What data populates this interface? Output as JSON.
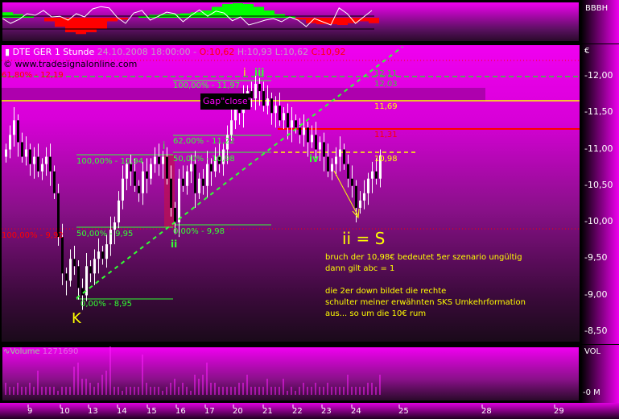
{
  "header": {
    "symbol": "DTE GER 1 Stunde",
    "datetime": "24.10.2008 18:00:00 -",
    "open": "O:10,62",
    "high": "H:10,93",
    "low": "L:10,62",
    "close": "C:10,92",
    "copyright": "© www.tradesignalonline.com"
  },
  "top_panel": {
    "label": "BBBH"
  },
  "volume_panel": {
    "label": "Volume",
    "value": "1271690",
    "axis_label": "VOL",
    "zero_label": "0 M"
  },
  "currency": "€",
  "colors": {
    "accent": "#f000f0",
    "fib": "#33ff33",
    "bull": "#ffffff",
    "bear": "#000000",
    "red": "#ff0000",
    "yellow": "#ffff00"
  },
  "annotations": {
    "fib_61_8": "61,80% - 12,19",
    "fib_100_992": "100,00% - 9,92",
    "fib_100_1197": "100,00% - 11,97",
    "fib_62_1122": "62,00% - 11,22",
    "fib_50_1098": "50,00% - 10,98",
    "fib_0_998": "0,00% - 9,98",
    "fib_100_1094": "100,00% - 10,94",
    "fib_50_995": "50,00% - 9,95",
    "fib_0_895": "0,00% - 8,95",
    "gap_close": "Gap\"close\"",
    "wave_i_top": "i",
    "wave_iii": "iii",
    "wave_i": "i",
    "wave_ii": "ii",
    "wave_iv": "iv",
    "wave_k": "K",
    "wave_ii_s": "ii = S",
    "level_1211": "12,11",
    "level_1203": "12,03",
    "level_1169": "11,69",
    "level_1131": "11,31",
    "level_1098": "10,98",
    "note_lines": [
      "bruch der 10,98€ bedeutet 5er szenario ungültig",
      "dann gilt abc = 1",
      "",
      "die 2er down bildet die rechte",
      "schulter meiner erwähnten SKS Umkehrformation",
      "aus... so um die 10€ rum"
    ]
  },
  "chart_data": {
    "type": "candlestick",
    "title": "DTE GER 1 Stunde",
    "ylim": [
      8.3,
      12.4
    ],
    "y_ticks": [
      "12,00",
      "11,50",
      "11,00",
      "10,50",
      "10,00",
      "9,50",
      "9,00",
      "8,50"
    ],
    "x_ticks": [
      "9",
      "10",
      "13",
      "14",
      "15",
      "16",
      "17",
      "20",
      "21",
      "22",
      "23",
      "24",
      "25",
      "28",
      "29"
    ],
    "close": [
      11.0,
      11.2,
      11.4,
      11.1,
      10.9,
      11.0,
      10.8,
      10.9,
      10.7,
      10.8,
      10.9,
      10.7,
      10.4,
      9.8,
      9.3,
      9.2,
      9.5,
      9.4,
      9.1,
      9.0,
      9.4,
      9.3,
      9.5,
      9.6,
      9.5,
      9.7,
      9.9,
      10.0,
      10.3,
      10.6,
      10.8,
      10.7,
      10.5,
      10.4,
      10.7,
      10.6,
      10.8,
      10.9,
      10.8,
      10.9,
      10.6,
      10.2,
      10.0,
      10.6,
      10.5,
      10.7,
      10.8,
      10.4,
      10.6,
      10.5,
      10.8,
      10.7,
      10.9,
      10.8,
      11.0,
      11.2,
      11.4,
      11.6,
      11.5,
      11.7,
      11.8,
      11.7,
      11.9,
      11.8,
      11.6,
      11.7,
      11.5,
      11.6,
      11.4,
      11.5,
      11.3,
      11.4,
      11.3,
      11.2,
      11.3,
      11.1,
      11.2,
      11.0,
      11.1,
      10.9,
      10.7,
      10.8,
      10.9,
      11.0,
      10.8,
      10.6,
      10.5,
      10.2,
      10.3,
      10.4,
      10.6,
      10.7,
      10.6,
      10.92
    ],
    "volume": [
      3,
      2,
      2,
      3,
      2,
      2,
      3,
      2,
      6,
      2,
      2,
      2,
      2,
      1,
      2,
      2,
      2,
      7,
      8,
      4,
      4,
      3,
      2,
      3,
      5,
      6,
      12,
      2,
      2,
      1,
      2,
      2,
      2,
      2,
      10,
      3,
      2,
      2,
      2,
      1,
      2,
      3,
      4,
      2,
      3,
      2,
      1,
      5,
      4,
      5,
      8,
      3,
      3,
      2,
      2,
      2,
      2,
      2,
      3,
      3,
      5,
      2,
      2,
      2,
      2,
      4,
      2,
      2,
      2,
      4,
      1,
      2,
      1,
      2,
      3,
      2,
      2,
      3,
      2,
      2,
      3,
      2,
      2,
      2,
      2,
      5,
      2,
      2,
      2,
      2,
      3,
      3,
      2,
      5
    ],
    "oscillator": [
      55,
      40,
      52,
      70,
      65,
      80,
      60,
      62,
      50,
      70,
      60,
      85,
      92,
      88,
      58,
      40,
      72,
      80,
      50,
      62,
      75,
      70,
      45,
      65,
      82,
      62,
      78,
      72,
      48,
      60,
      35,
      42,
      50,
      55,
      45,
      60,
      50,
      30,
      55,
      45,
      35,
      88,
      70,
      40,
      60,
      80
    ],
    "oscillator_area": [
      15,
      10,
      5,
      0,
      -10,
      -25,
      -40,
      -45,
      -40,
      -30,
      -10,
      -5,
      0,
      5,
      8,
      10,
      10,
      12,
      15,
      20,
      30,
      38,
      40,
      38,
      30,
      20,
      10,
      5,
      -5,
      -15,
      -18,
      -18,
      -20,
      -15,
      -10,
      -15,
      -20
    ]
  }
}
